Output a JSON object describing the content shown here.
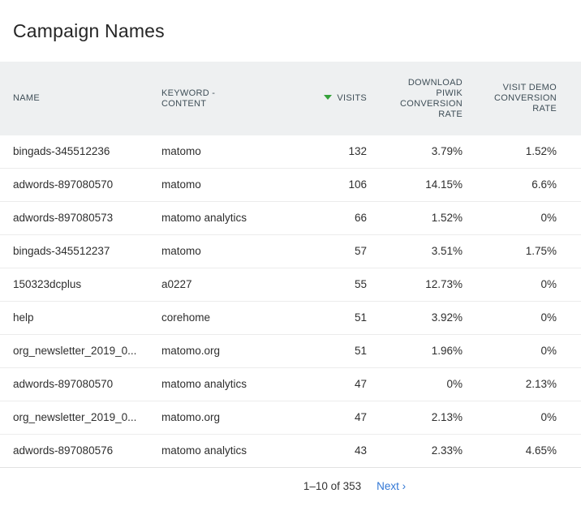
{
  "page": {
    "title": "Campaign Names"
  },
  "table": {
    "columns": [
      {
        "label": "NAME",
        "align": "left",
        "sortable": true
      },
      {
        "label": "KEYWORD - CONTENT",
        "align": "left",
        "sortable": true
      },
      {
        "label": "VISITS",
        "align": "right",
        "sorted": "desc",
        "sort_icon": "triangle-down-icon"
      },
      {
        "label": "DOWNLOAD PIWIK CONVERSION RATE",
        "align": "right",
        "sortable": true
      },
      {
        "label": "VISIT DEMO CONVERSION RATE",
        "align": "right",
        "sortable": true
      }
    ],
    "rows": [
      [
        "bingads-345512236",
        "matomo",
        "132",
        "3.79%",
        "1.52%"
      ],
      [
        "adwords-897080570",
        "matomo",
        "106",
        "14.15%",
        "6.6%"
      ],
      [
        "adwords-897080573",
        "matomo analytics",
        "66",
        "1.52%",
        "0%"
      ],
      [
        "bingads-345512237",
        "matomo",
        "57",
        "3.51%",
        "1.75%"
      ],
      [
        "150323dcplus",
        "a0227",
        "55",
        "12.73%",
        "0%"
      ],
      [
        "help",
        "corehome",
        "51",
        "3.92%",
        "0%"
      ],
      [
        "org_newsletter_2019_0...",
        "matomo.org",
        "51",
        "1.96%",
        "0%"
      ],
      [
        "adwords-897080570",
        "matomo analytics",
        "47",
        "0%",
        "2.13%"
      ],
      [
        "org_newsletter_2019_0...",
        "matomo.org",
        "47",
        "2.13%",
        "0%"
      ],
      [
        "adwords-897080576",
        "matomo analytics",
        "43",
        "2.33%",
        "4.65%"
      ]
    ]
  },
  "pagination": {
    "range": "1–10 of 353",
    "next_label": "Next ›"
  },
  "colors": {
    "header_bg": "#eef0f1",
    "header_text": "#3f4e57",
    "sort_arrow_green": "#35a13a",
    "link_blue": "#3277d5",
    "row_separator": "#ececec"
  }
}
